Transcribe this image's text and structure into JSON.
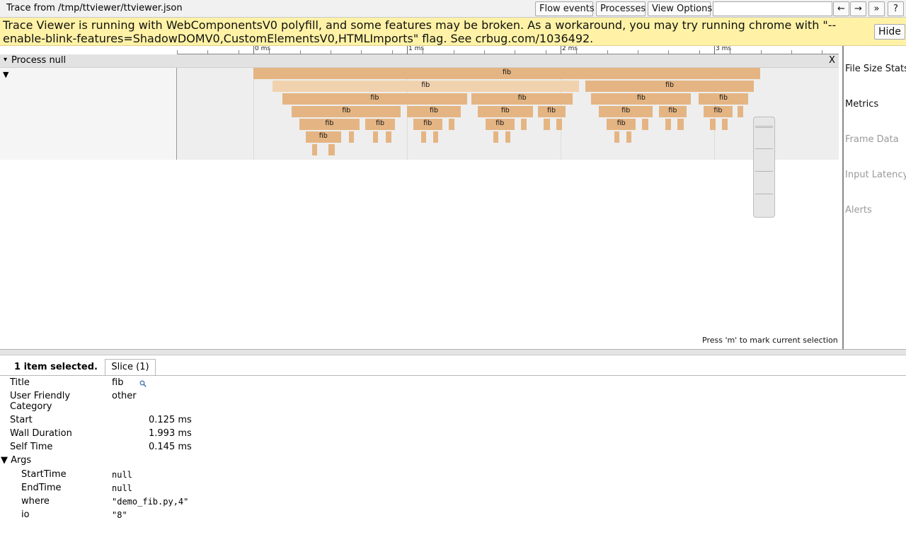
{
  "window": {
    "title": "Trace from /tmp/ttviewer/ttviewer.json"
  },
  "toolbar": {
    "flow_events": "Flow events",
    "processes": "Processes",
    "view_options": "View Options",
    "search_placeholder": "",
    "prev_label": "←",
    "next_label": "→",
    "more_label": "»",
    "help_label": "?"
  },
  "banner": {
    "text": "Trace Viewer is running with WebComponentsV0 polyfill, and some features may be broken. As a workaround, you may try running chrome with \"--enable-blink-features=ShadowDOMV0,CustomElementsV0,HTMLImports\" flag. See crbug.com/1036492.",
    "hide_label": "Hide"
  },
  "ruler": {
    "labels": [
      "0 ms",
      "1 ms",
      "2 ms",
      "3 ms"
    ]
  },
  "process": {
    "label": "Process null",
    "close_label": "X",
    "expand_icon": "▾"
  },
  "thread": {
    "expand_icon": "▼"
  },
  "slices": [
    {
      "name": "fib",
      "start": 0.0,
      "end": 3.3,
      "depth": 0,
      "label": true
    },
    {
      "name": "fib",
      "start": 0.125,
      "end": 2.118,
      "depth": 1,
      "label": true,
      "selected": true
    },
    {
      "name": "fib",
      "start": 2.16,
      "end": 3.26,
      "depth": 1,
      "label": true
    },
    {
      "name": "fib",
      "start": 0.19,
      "end": 1.39,
      "depth": 2,
      "label": true
    },
    {
      "name": "fib",
      "start": 1.42,
      "end": 2.08,
      "depth": 2,
      "label": true
    },
    {
      "name": "fib",
      "start": 2.2,
      "end": 2.85,
      "depth": 2,
      "label": true
    },
    {
      "name": "fib",
      "start": 2.9,
      "end": 3.22,
      "depth": 2,
      "label": true
    },
    {
      "name": "fib",
      "start": 0.25,
      "end": 0.96,
      "depth": 3,
      "label": true
    },
    {
      "name": "fib",
      "start": 1.0,
      "end": 1.35,
      "depth": 3,
      "label": true
    },
    {
      "name": "fib",
      "start": 1.46,
      "end": 1.82,
      "depth": 3,
      "label": true
    },
    {
      "name": "fib",
      "start": 1.85,
      "end": 2.03,
      "depth": 3,
      "label": true
    },
    {
      "name": "fib",
      "start": 2.25,
      "end": 2.6,
      "depth": 3,
      "label": true
    },
    {
      "name": "fib",
      "start": 2.64,
      "end": 2.82,
      "depth": 3,
      "label": true
    },
    {
      "name": "fib",
      "start": 2.93,
      "end": 3.12,
      "depth": 3,
      "label": true
    },
    {
      "name": "fib",
      "start": 3.15,
      "end": 3.19,
      "depth": 3,
      "label": false
    },
    {
      "name": "fib",
      "start": 0.3,
      "end": 0.69,
      "depth": 4,
      "label": true
    },
    {
      "name": "fib",
      "start": 0.73,
      "end": 0.92,
      "depth": 4,
      "label": true
    },
    {
      "name": "fib",
      "start": 1.04,
      "end": 1.23,
      "depth": 4,
      "label": true
    },
    {
      "name": "fib",
      "start": 1.27,
      "end": 1.31,
      "depth": 4,
      "label": false
    },
    {
      "name": "fib",
      "start": 1.51,
      "end": 1.7,
      "depth": 4,
      "label": true
    },
    {
      "name": "fib",
      "start": 1.74,
      "end": 1.78,
      "depth": 4,
      "label": false
    },
    {
      "name": "fib",
      "start": 1.89,
      "end": 1.93,
      "depth": 4,
      "label": false
    },
    {
      "name": "fib",
      "start": 1.97,
      "end": 2.01,
      "depth": 4,
      "label": false
    },
    {
      "name": "fib",
      "start": 2.3,
      "end": 2.49,
      "depth": 4,
      "label": true
    },
    {
      "name": "fib",
      "start": 2.53,
      "end": 2.57,
      "depth": 4,
      "label": false
    },
    {
      "name": "fib",
      "start": 2.68,
      "end": 2.72,
      "depth": 4,
      "label": false
    },
    {
      "name": "fib",
      "start": 2.76,
      "end": 2.8,
      "depth": 4,
      "label": false
    },
    {
      "name": "fib",
      "start": 2.97,
      "end": 3.01,
      "depth": 4,
      "label": false
    },
    {
      "name": "fib",
      "start": 3.05,
      "end": 3.09,
      "depth": 4,
      "label": false
    },
    {
      "name": "fib",
      "start": 0.34,
      "end": 0.57,
      "depth": 5,
      "label": true
    },
    {
      "name": "fib",
      "start": 0.62,
      "end": 0.65,
      "depth": 5,
      "label": false
    },
    {
      "name": "fib",
      "start": 0.78,
      "end": 0.81,
      "depth": 5,
      "label": false
    },
    {
      "name": "fib",
      "start": 0.86,
      "end": 0.9,
      "depth": 5,
      "label": false
    },
    {
      "name": "fib",
      "start": 1.09,
      "end": 1.12,
      "depth": 5,
      "label": false
    },
    {
      "name": "fib",
      "start": 1.17,
      "end": 1.2,
      "depth": 5,
      "label": false
    },
    {
      "name": "fib",
      "start": 1.56,
      "end": 1.59,
      "depth": 5,
      "label": false
    },
    {
      "name": "fib",
      "start": 1.64,
      "end": 1.67,
      "depth": 5,
      "label": false
    },
    {
      "name": "fib",
      "start": 2.35,
      "end": 2.38,
      "depth": 5,
      "label": false
    },
    {
      "name": "fib",
      "start": 2.43,
      "end": 2.46,
      "depth": 5,
      "label": false
    },
    {
      "name": "fib",
      "start": 0.38,
      "end": 0.41,
      "depth": 6,
      "label": false
    },
    {
      "name": "fib",
      "start": 0.49,
      "end": 0.53,
      "depth": 6,
      "label": false
    }
  ],
  "mark_hint": "Press 'm' to mark current selection",
  "side_panel": [
    {
      "label": "File Size Stats",
      "enabled": true
    },
    {
      "label": "Metrics",
      "enabled": true
    },
    {
      "label": "Frame Data",
      "enabled": false
    },
    {
      "label": "Input Latency",
      "enabled": false
    },
    {
      "label": "Alerts",
      "enabled": false
    }
  ],
  "analysis": {
    "summary": "1 item selected.",
    "tab_label": "Slice (1)",
    "title_label": "Title",
    "title_value": "fib",
    "category_label": "User Friendly Category",
    "category_value": "other",
    "start_label": "Start",
    "start_value": "0.125 ms",
    "wall_label": "Wall Duration",
    "wall_value": "1.993 ms",
    "self_label": "Self Time",
    "self_value": "0.145 ms",
    "args_label": "Args",
    "args": [
      {
        "key": "StartTime",
        "value": "null"
      },
      {
        "key": "EndTime",
        "value": "null"
      },
      {
        "key": "where",
        "value": "\"demo_fib.py,4\""
      },
      {
        "key": "io",
        "value": "\"8\""
      }
    ]
  },
  "colors": {
    "slice": "#e4b583",
    "slice_selected": "#f0d2ae",
    "banner": "#fff2a6"
  }
}
